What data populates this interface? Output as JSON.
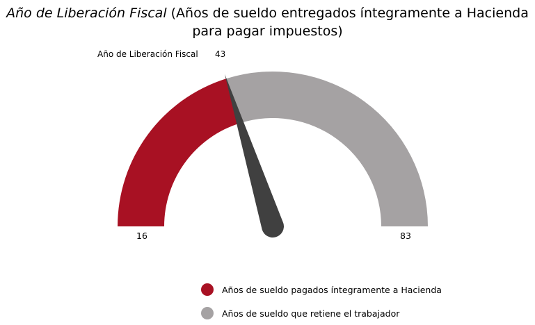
{
  "title": {
    "italic": "Año de Liberación Fiscal",
    "rest": " (Años de sueldo entregados íntegramente a Hacienda para pagar impuestos)"
  },
  "chart_data": {
    "type": "gauge",
    "label": "Año de Liberación Fiscal",
    "min": 16,
    "max": 83,
    "value": 43,
    "min_label": "16",
    "max_label": "83",
    "value_label": "43",
    "series": [
      {
        "name": "Años de sueldo pagados íntegramente a Hacienda",
        "from": 16,
        "to": 43,
        "color": "#a81123"
      },
      {
        "name": "Años de sueldo que retiene el trabajador",
        "from": 43,
        "to": 83,
        "color": "#a5a2a3"
      }
    ],
    "needle_color": "#404040",
    "legend_position": "bottom"
  }
}
